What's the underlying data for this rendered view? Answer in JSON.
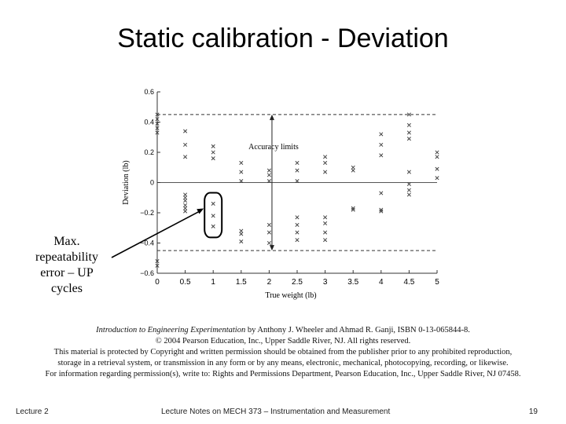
{
  "slide": {
    "title": "Static calibration - Deviation",
    "annotation": "Max. repeatability error – UP cycles"
  },
  "credit": {
    "book_title": "Introduction to Engineering Experimentation",
    "line1_rest": " by Anthony J. Wheeler and Ahmad R. Ganji, ISBN 0-13-065844-8.",
    "line2": "© 2004 Pearson Education, Inc., Upper Saddle River, NJ. All rights reserved.",
    "line3": "This material is protected by Copyright and written permission should be obtained from the publisher prior to any prohibited reproduction,",
    "line4": "storage in a retrieval system, or transmission in any form or by any means, electronic, mechanical, photocopying, recording, or likewise.",
    "line5": "For information regarding permission(s), write to: Rights and Permissions Department, Pearson Education, Inc., Upper Saddle River, NJ 07458."
  },
  "footer": {
    "left": "Lecture 2",
    "center": "Lecture Notes on MECH 373 – Instrumentation and Measurement",
    "page": "19"
  },
  "colors": {
    "marker": "#444444",
    "text": "#000000",
    "axis": "#333333"
  },
  "chart_data": {
    "type": "scatter",
    "xlabel": "True weight (lb)",
    "ylabel": "Deviation (lb)",
    "xlim": [
      0,
      5
    ],
    "ylim": [
      -0.6,
      0.6
    ],
    "xticks": [
      0,
      0.5,
      1,
      1.5,
      2,
      2.5,
      3,
      3.5,
      4,
      4.5,
      5
    ],
    "xtick_labels": [
      "0",
      "0.5",
      "1",
      "1.5",
      "2",
      "2.5",
      "3",
      "3.5",
      "4",
      "4.5",
      "5"
    ],
    "yticks": [
      -0.6,
      -0.4,
      -0.2,
      0,
      0.2,
      0.4,
      0.6
    ],
    "ytick_labels": [
      "−0.6",
      "−0.4",
      "−0.2",
      "0",
      "0.2",
      "0.4",
      "0.6"
    ],
    "accuracy_limits": {
      "label": "Accuracy limits",
      "upper": 0.45,
      "lower": -0.45
    },
    "marker": "x",
    "points": [
      {
        "x": 0,
        "y": 0.45
      },
      {
        "x": 0,
        "y": 0.42
      },
      {
        "x": 0,
        "y": 0.39
      },
      {
        "x": 0,
        "y": 0.36
      },
      {
        "x": 0,
        "y": 0.33
      },
      {
        "x": 0,
        "y": -0.52
      },
      {
        "x": 0,
        "y": -0.55
      },
      {
        "x": 0.5,
        "y": 0.34
      },
      {
        "x": 0.5,
        "y": 0.25
      },
      {
        "x": 0.5,
        "y": 0.17
      },
      {
        "x": 0.5,
        "y": -0.08
      },
      {
        "x": 0.5,
        "y": -0.1
      },
      {
        "x": 0.5,
        "y": -0.12
      },
      {
        "x": 0.5,
        "y": -0.15
      },
      {
        "x": 0.5,
        "y": -0.17
      },
      {
        "x": 0.5,
        "y": -0.19
      },
      {
        "x": 1,
        "y": 0.24
      },
      {
        "x": 1,
        "y": 0.2
      },
      {
        "x": 1,
        "y": 0.16
      },
      {
        "x": 1,
        "y": -0.14
      },
      {
        "x": 1,
        "y": -0.22
      },
      {
        "x": 1,
        "y": -0.29
      },
      {
        "x": 1.5,
        "y": 0.13
      },
      {
        "x": 1.5,
        "y": 0.07
      },
      {
        "x": 1.5,
        "y": 0.01
      },
      {
        "x": 1.5,
        "y": -0.32
      },
      {
        "x": 1.5,
        "y": -0.34
      },
      {
        "x": 1.5,
        "y": -0.39
      },
      {
        "x": 2,
        "y": 0.08
      },
      {
        "x": 2,
        "y": 0.05
      },
      {
        "x": 2,
        "y": 0.01
      },
      {
        "x": 2,
        "y": -0.28
      },
      {
        "x": 2,
        "y": -0.33
      },
      {
        "x": 2,
        "y": -0.4
      },
      {
        "x": 2.5,
        "y": 0.13
      },
      {
        "x": 2.5,
        "y": 0.08
      },
      {
        "x": 2.5,
        "y": 0.01
      },
      {
        "x": 2.5,
        "y": -0.23
      },
      {
        "x": 2.5,
        "y": -0.28
      },
      {
        "x": 2.5,
        "y": -0.33
      },
      {
        "x": 2.5,
        "y": -0.38
      },
      {
        "x": 3,
        "y": 0.17
      },
      {
        "x": 3,
        "y": 0.13
      },
      {
        "x": 3,
        "y": 0.07
      },
      {
        "x": 3,
        "y": -0.23
      },
      {
        "x": 3,
        "y": -0.27
      },
      {
        "x": 3,
        "y": -0.33
      },
      {
        "x": 3,
        "y": -0.38
      },
      {
        "x": 3.5,
        "y": 0.1
      },
      {
        "x": 3.5,
        "y": 0.08
      },
      {
        "x": 3.5,
        "y": -0.17
      },
      {
        "x": 3.5,
        "y": -0.18
      },
      {
        "x": 4,
        "y": 0.32
      },
      {
        "x": 4,
        "y": 0.25
      },
      {
        "x": 4,
        "y": 0.18
      },
      {
        "x": 4,
        "y": -0.07
      },
      {
        "x": 4,
        "y": -0.18
      },
      {
        "x": 4,
        "y": -0.19
      },
      {
        "x": 4.5,
        "y": 0.45
      },
      {
        "x": 4.5,
        "y": 0.38
      },
      {
        "x": 4.5,
        "y": 0.33
      },
      {
        "x": 4.5,
        "y": 0.29
      },
      {
        "x": 4.5,
        "y": 0.07
      },
      {
        "x": 4.5,
        "y": -0.01
      },
      {
        "x": 4.5,
        "y": -0.05
      },
      {
        "x": 4.5,
        "y": -0.08
      },
      {
        "x": 5,
        "y": 0.2
      },
      {
        "x": 5,
        "y": 0.17
      },
      {
        "x": 5,
        "y": 0.09
      },
      {
        "x": 5,
        "y": 0.03
      }
    ],
    "highlight_group": {
      "x": 1,
      "y_min": -0.29,
      "y_max": -0.14
    }
  }
}
